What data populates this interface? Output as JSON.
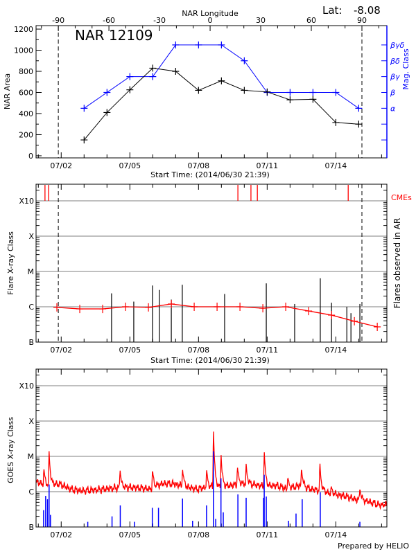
{
  "header": {
    "lat_label": "Lat:",
    "lat_value": "-8.08"
  },
  "footer": "Prepared by HELIO",
  "colors": {
    "area": "#000000",
    "mag_class": "#0000ff",
    "flare_avg": "#ff0000",
    "cme": "#ff0000",
    "goes_long": "#ff0000",
    "goes_short": "#0000ff",
    "grid": "#999999"
  },
  "time_axis": {
    "start": "2014/06/30 21:39",
    "xlim_days": [
      0,
      15.33
    ],
    "first_midnight_day": 0.099,
    "date_ticks": [
      {
        "label": "07/02",
        "day": 1.099
      },
      {
        "label": "07/05",
        "day": 4.099
      },
      {
        "label": "07/08",
        "day": 7.099
      },
      {
        "label": "07/11",
        "day": 10.099
      },
      {
        "label": "07/14",
        "day": 13.099
      }
    ]
  },
  "chart_data": [
    {
      "type": "line",
      "title": "NAR 12109",
      "xlabel": "Start Time: (2014/06/30 21:39)",
      "top_xlabel": "NAR Longitude",
      "ylabel": "NAR Area",
      "y2label": "Mag. Class",
      "ylim": [
        -20,
        1233
      ],
      "yticks": [
        0,
        200,
        400,
        600,
        800,
        1000,
        1200
      ],
      "lon_xlim": [
        -103.2,
        104.8
      ],
      "lon_ticks": [
        -90,
        -60,
        -30,
        0,
        30,
        60,
        90
      ],
      "limb_lon": [
        -90,
        90
      ],
      "mag_class_levels": [
        {
          "label": "βγδ",
          "value": 1050
        },
        {
          "label": "βδ",
          "value": 900
        },
        {
          "label": "βγ",
          "value": 750
        },
        {
          "label": "β",
          "value": 600
        },
        {
          "label": "α",
          "value": 450
        },
        {
          "label": "",
          "value": 300
        },
        {
          "label": "",
          "value": 150
        }
      ],
      "series": [
        {
          "name": "NAR Area",
          "x_day": [
            2.1,
            3.1,
            4.1,
            5.1,
            6.1,
            7.1,
            8.1,
            9.1,
            10.1,
            11.1,
            12.1,
            13.1,
            14.1
          ],
          "values": [
            150,
            410,
            625,
            830,
            800,
            620,
            710,
            620,
            605,
            530,
            535,
            315,
            300
          ]
        },
        {
          "name": "Mag. Class",
          "x_day": [
            2.1,
            3.1,
            4.1,
            5.1,
            6.1,
            7.1,
            8.1,
            9.1,
            10.1,
            11.1,
            12.1,
            13.1,
            14.1
          ],
          "values": [
            "α",
            "β",
            "βγ",
            "βγ",
            "βγδ",
            "βγδ",
            "βγδ",
            "βδ",
            "β",
            "β",
            "β",
            "β",
            "α"
          ]
        }
      ]
    },
    {
      "type": "bar",
      "xlabel": "Start Time: (2014/06/30 21:39)",
      "ylabel": "Flare X-ray Class",
      "y2label": "Flares observed in AR",
      "cme_label": "CMEs",
      "ylim_log_flux": [
        -7,
        -2.53
      ],
      "ytick_labels": [
        {
          "label": "B",
          "log": -7
        },
        {
          "label": "C",
          "log": -6
        },
        {
          "label": "M",
          "log": -5
        },
        {
          "label": "X",
          "log": -4
        },
        {
          "label": "X10",
          "log": -3
        }
      ],
      "limb_lon": [
        -90,
        90
      ],
      "cme_days": [
        0.39,
        0.55,
        8.82,
        9.39,
        9.67,
        13.64
      ],
      "flares": [
        {
          "day": 3.3,
          "class": "C2.4"
        },
        {
          "day": 4.27,
          "class": "C1.4"
        },
        {
          "day": 5.09,
          "class": "C4.0"
        },
        {
          "day": 5.39,
          "class": "C3.0"
        },
        {
          "day": 5.91,
          "class": "C1.6"
        },
        {
          "day": 6.39,
          "class": "C4.2"
        },
        {
          "day": 8.24,
          "class": "C2.3"
        },
        {
          "day": 10.06,
          "class": "C4.6"
        },
        {
          "day": 11.3,
          "class": "C1.2"
        },
        {
          "day": 12.42,
          "class": "C6.4"
        },
        {
          "day": 12.91,
          "class": "C1.3"
        },
        {
          "day": 13.58,
          "class": "C1.0"
        },
        {
          "day": 13.76,
          "class": "B6.6"
        },
        {
          "day": 14.15,
          "class": "C1.2"
        }
      ],
      "average": [
        {
          "day": 0.91,
          "class": "B9.6"
        },
        {
          "day": 1.91,
          "class": "B8.7"
        },
        {
          "day": 2.91,
          "class": "B8.7"
        },
        {
          "day": 3.91,
          "class": "C1.0"
        },
        {
          "day": 4.91,
          "class": "B9.6"
        },
        {
          "day": 5.91,
          "class": "C1.2"
        },
        {
          "day": 6.91,
          "class": "C1.0"
        },
        {
          "day": 7.91,
          "class": "C1.0"
        },
        {
          "day": 8.91,
          "class": "C1.0"
        },
        {
          "day": 9.91,
          "class": "B9.1"
        },
        {
          "day": 10.91,
          "class": "C1.0"
        },
        {
          "day": 11.91,
          "class": "B7.6"
        },
        {
          "day": 12.91,
          "class": "B5.8"
        },
        {
          "day": 13.91,
          "class": "B3.9"
        },
        {
          "day": 14.91,
          "class": "B2.7"
        }
      ]
    },
    {
      "type": "line",
      "ylabel": "GOES X-ray Class",
      "ylim_log_flux": [
        -7,
        -2.53
      ],
      "ytick_labels": [
        {
          "label": "B",
          "log": -7
        },
        {
          "label": "C",
          "log": -6
        },
        {
          "label": "M",
          "log": -5
        },
        {
          "label": "X",
          "log": -4
        },
        {
          "label": "X10",
          "log": -3
        }
      ],
      "long_channel_background": {
        "step_days": 0.5,
        "log_flux": [
          -5.75,
          -5.85,
          -5.8,
          -5.95,
          -6.0,
          -5.98,
          -5.95,
          -5.92,
          -5.9,
          -5.92,
          -5.95,
          -5.8,
          -5.8,
          -5.88,
          -5.95,
          -5.9,
          -5.9,
          -5.85,
          -5.8,
          -5.82,
          -5.88,
          -5.85,
          -5.95,
          -5.85,
          -5.95,
          -6.0,
          -6.1,
          -6.15,
          -6.25,
          -6.3,
          -6.4
        ]
      },
      "long_channel_peaks": [
        {
          "day": 0.34,
          "class": "C4.6"
        },
        {
          "day": 0.57,
          "class": "M1.4"
        },
        {
          "day": 3.67,
          "class": "C4.4"
        },
        {
          "day": 5.09,
          "class": "C4.4"
        },
        {
          "day": 6.4,
          "class": "C4.6"
        },
        {
          "day": 7.45,
          "class": "C4.4"
        },
        {
          "day": 7.75,
          "class": "M6.9"
        },
        {
          "day": 8.08,
          "class": "M1.3"
        },
        {
          "day": 8.8,
          "class": "C5.3"
        },
        {
          "day": 9.18,
          "class": "C6.1"
        },
        {
          "day": 9.97,
          "class": "M1.6"
        },
        {
          "day": 11.0,
          "class": "C2.7"
        },
        {
          "day": 11.6,
          "class": "C4.9"
        },
        {
          "day": 12.4,
          "class": "C7.0"
        },
        {
          "day": 12.9,
          "class": "C1.4"
        },
        {
          "day": 14.15,
          "class": "C1.3"
        },
        {
          "day": 15.15,
          "class": "B3.9"
        }
      ],
      "short_channel_peaks": [
        {
          "day": 0.33,
          "class": "B3.0"
        },
        {
          "day": 0.42,
          "class": "B7.6"
        },
        {
          "day": 0.5,
          "class": "B6.1"
        },
        {
          "day": 0.57,
          "class": "C1.6"
        },
        {
          "day": 0.63,
          "class": "B2.2"
        },
        {
          "day": 2.26,
          "class": "B1.4"
        },
        {
          "day": 3.32,
          "class": "B2.0"
        },
        {
          "day": 3.68,
          "class": "B4.1"
        },
        {
          "day": 4.3,
          "class": "B1.4"
        },
        {
          "day": 5.08,
          "class": "B3.5"
        },
        {
          "day": 5.35,
          "class": "B3.5"
        },
        {
          "day": 6.4,
          "class": "B6.4"
        },
        {
          "day": 6.84,
          "class": "B1.5"
        },
        {
          "day": 7.45,
          "class": "B4.1"
        },
        {
          "day": 7.75,
          "class": "M1.4"
        },
        {
          "day": 7.85,
          "class": "B1.7"
        },
        {
          "day": 8.08,
          "class": "C2.4"
        },
        {
          "day": 8.18,
          "class": "B2.6"
        },
        {
          "day": 8.82,
          "class": "B8.4"
        },
        {
          "day": 9.18,
          "class": "B6.7"
        },
        {
          "day": 9.94,
          "class": "B6.7"
        },
        {
          "day": 9.97,
          "class": "C3.0"
        },
        {
          "day": 10.06,
          "class": "B7.3"
        },
        {
          "day": 11.03,
          "class": "B1.5"
        },
        {
          "day": 11.36,
          "class": "B2.4"
        },
        {
          "day": 11.63,
          "class": "B6.1"
        },
        {
          "day": 12.42,
          "class": "B9.6"
        },
        {
          "day": 14.15,
          "class": "B1.4"
        }
      ]
    }
  ]
}
